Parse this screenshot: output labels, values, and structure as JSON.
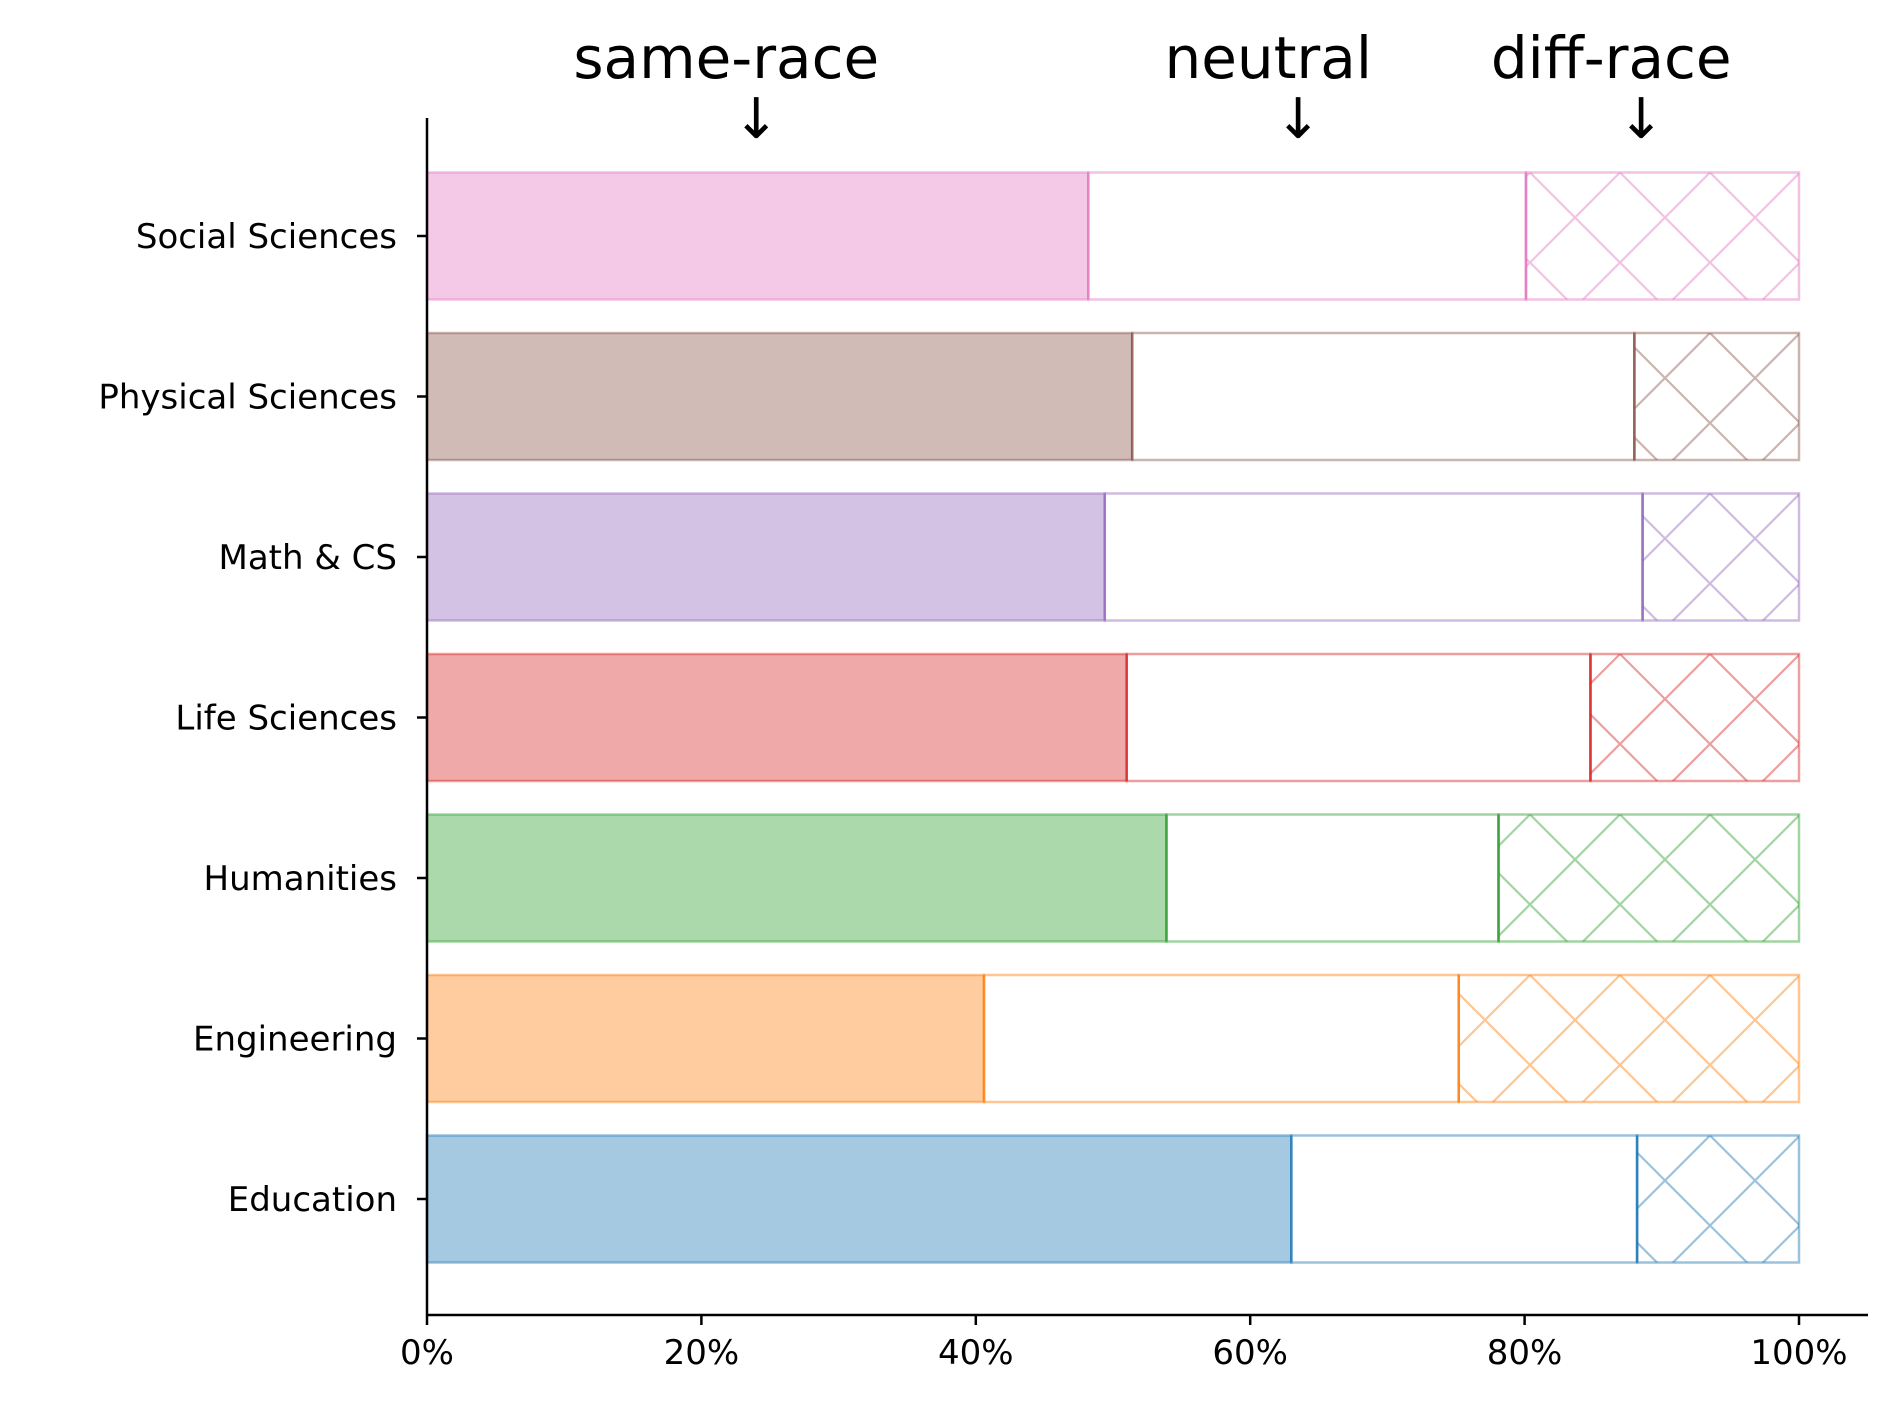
{
  "chart_data": {
    "type": "bar",
    "orientation": "horizontal",
    "stacked": true,
    "normalized": true,
    "categories": [
      "Social Sciences",
      "Physical Sciences",
      "Math & CS",
      "Life Sciences",
      "Humanities",
      "Engineering",
      "Education"
    ],
    "series": [
      {
        "name": "same-race",
        "values": [
          48.2,
          51.4,
          49.4,
          51.0,
          53.9,
          40.6,
          63.0
        ]
      },
      {
        "name": "neutral",
        "values": [
          31.9,
          36.6,
          39.2,
          33.8,
          24.2,
          34.6,
          25.2
        ]
      },
      {
        "name": "diff-race",
        "values": [
          19.9,
          12.0,
          11.4,
          15.2,
          21.9,
          24.8,
          11.8
        ]
      }
    ],
    "colors": [
      "#e377c2",
      "#8c564b",
      "#9467bd",
      "#d62728",
      "#2ca02c",
      "#ff7f0e",
      "#1f77b4"
    ],
    "header_labels": [
      {
        "text": "same-race",
        "arrow": "↓",
        "at": 24
      },
      {
        "text": "neutral",
        "arrow": "↓",
        "at": 63.5
      },
      {
        "text": "diff-race",
        "arrow": "↓",
        "at": 88.5
      }
    ],
    "xlim": [
      0,
      100
    ],
    "xticks": [
      "0%",
      "20%",
      "40%",
      "60%",
      "80%",
      "100%"
    ],
    "xtick_values": [
      0,
      20,
      40,
      60,
      80,
      100
    ],
    "xlabel": "",
    "ylabel": "",
    "grid": false,
    "legend": "none"
  }
}
